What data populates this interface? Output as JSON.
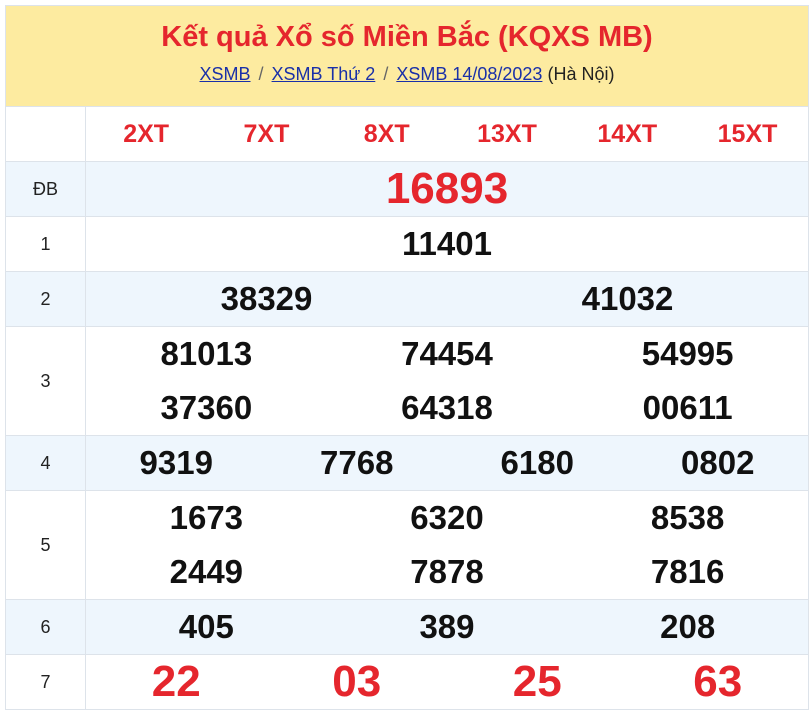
{
  "header": {
    "title": "Kết quả Xổ số Miền Bắc (KQXS MB)",
    "breadcrumb": [
      "XSMB",
      "XSMB Thứ 2",
      "XSMB 14/08/2023"
    ],
    "region": "(Hà Nội)"
  },
  "codes": [
    "2XT",
    "7XT",
    "8XT",
    "13XT",
    "14XT",
    "15XT"
  ],
  "prizes": [
    {
      "label": "ĐB",
      "numbers": [
        "16893"
      ]
    },
    {
      "label": "1",
      "numbers": [
        "11401"
      ]
    },
    {
      "label": "2",
      "numbers": [
        "38329",
        "41032"
      ]
    },
    {
      "label": "3",
      "numbers": [
        "81013",
        "74454",
        "54995",
        "37360",
        "64318",
        "00611"
      ]
    },
    {
      "label": "4",
      "numbers": [
        "9319",
        "7768",
        "6180",
        "0802"
      ]
    },
    {
      "label": "5",
      "numbers": [
        "1673",
        "6320",
        "8538",
        "2449",
        "7878",
        "7816"
      ]
    },
    {
      "label": "6",
      "numbers": [
        "405",
        "389",
        "208"
      ]
    },
    {
      "label": "7",
      "numbers": [
        "22",
        "03",
        "25",
        "63"
      ]
    }
  ],
  "colors": {
    "accent": "#e5262d",
    "header_bg": "#fdeba0",
    "alt_row": "#eef6fd",
    "link": "#1a30a8"
  }
}
